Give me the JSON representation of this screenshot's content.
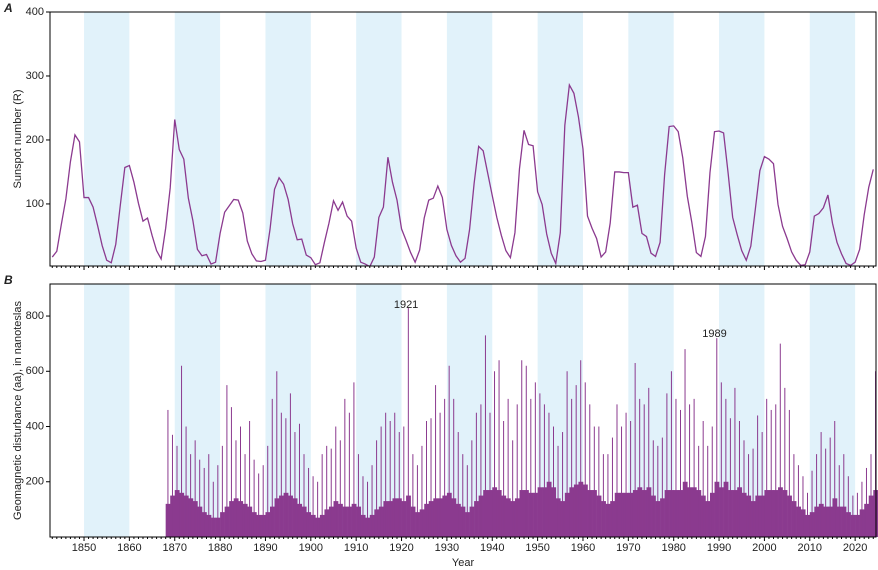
{
  "chart_data": [
    {
      "type": "line",
      "panel_label": "A",
      "y_label": "Sunspot number (R)",
      "color": "#8b3a8f",
      "shade_color": "#e1f2fa",
      "xlim": [
        1842.5,
        2024.6
      ],
      "ylim": [
        3,
        400
      ],
      "xticks": [
        1850,
        1860,
        1870,
        1880,
        1890,
        1900,
        1910,
        1920,
        1930,
        1940,
        1950,
        1960,
        1970,
        1980,
        1990,
        2000,
        2010,
        2020
      ],
      "yticks": [
        100,
        200,
        300,
        400
      ],
      "shaded_spans": [
        [
          1850,
          1860
        ],
        [
          1870,
          1880
        ],
        [
          1890,
          1900
        ],
        [
          1910,
          1920
        ],
        [
          1930,
          1940
        ],
        [
          1950,
          1960
        ],
        [
          1970,
          1980
        ],
        [
          1990,
          2000
        ],
        [
          2010,
          2020
        ]
      ],
      "x": [
        1843,
        1844,
        1845,
        1846,
        1847,
        1848,
        1849,
        1850,
        1851,
        1852,
        1853,
        1854,
        1855,
        1856,
        1857,
        1858,
        1859,
        1860,
        1861,
        1862,
        1863,
        1864,
        1865,
        1866,
        1867,
        1868,
        1869,
        1870,
        1871,
        1872,
        1873,
        1874,
        1875,
        1876,
        1877,
        1878,
        1879,
        1880,
        1881,
        1882,
        1883,
        1884,
        1885,
        1886,
        1887,
        1888,
        1889,
        1890,
        1891,
        1892,
        1893,
        1894,
        1895,
        1896,
        1897,
        1898,
        1899,
        1900,
        1901,
        1902,
        1903,
        1904,
        1905,
        1906,
        1907,
        1908,
        1909,
        1910,
        1911,
        1912,
        1913,
        1914,
        1915,
        1916,
        1917,
        1918,
        1919,
        1920,
        1921,
        1922,
        1923,
        1924,
        1925,
        1926,
        1927,
        1928,
        1929,
        1930,
        1931,
        1932,
        1933,
        1934,
        1935,
        1936,
        1937,
        1938,
        1939,
        1940,
        1941,
        1942,
        1943,
        1944,
        1945,
        1946,
        1947,
        1948,
        1949,
        1950,
        1951,
        1952,
        1953,
        1954,
        1955,
        1956,
        1957,
        1958,
        1959,
        1960,
        1961,
        1962,
        1963,
        1964,
        1965,
        1966,
        1967,
        1968,
        1969,
        1970,
        1971,
        1972,
        1973,
        1974,
        1975,
        1976,
        1977,
        1978,
        1979,
        1980,
        1981,
        1982,
        1983,
        1984,
        1985,
        1986,
        1987,
        1988,
        1989,
        1990,
        1991,
        1992,
        1993,
        1994,
        1995,
        1996,
        1997,
        1998,
        1999,
        2000,
        2001,
        2002,
        2003,
        2004,
        2005,
        2006,
        2007,
        2008,
        2009,
        2010,
        2011,
        2012,
        2013,
        2014,
        2015,
        2016,
        2017,
        2018,
        2019,
        2020,
        2021,
        2022,
        2023,
        2024
      ],
      "values": [
        17,
        26,
        68,
        108,
        166,
        208,
        197,
        110,
        110,
        95,
        66,
        35,
        12,
        8,
        37,
        98,
        157,
        160,
        134,
        101,
        73,
        78,
        51,
        27,
        14,
        62,
        125,
        232,
        185,
        170,
        109,
        74,
        29,
        19,
        21,
        6,
        9,
        54,
        87,
        97,
        107,
        106,
        86,
        42,
        22,
        11,
        10,
        12,
        60,
        123,
        141,
        131,
        107,
        69,
        44,
        45,
        20,
        16,
        5,
        8,
        40,
        70,
        105,
        90,
        103,
        81,
        73,
        31,
        9,
        6,
        2,
        17,
        79,
        95,
        173,
        134,
        106,
        61,
        43,
        24,
        9,
        28,
        78,
        106,
        109,
        128,
        110,
        60,
        35,
        19,
        9,
        15,
        60,
        132,
        190,
        183,
        148,
        113,
        79,
        51,
        27,
        16,
        55,
        155,
        215,
        193,
        191,
        119,
        99,
        53,
        23,
        7,
        55,
        223,
        286,
        273,
        236,
        186,
        81,
        62,
        46,
        17,
        25,
        70,
        150,
        150,
        149,
        149,
        95,
        98,
        54,
        49,
        23,
        18,
        40,
        146,
        221,
        222,
        213,
        172,
        112,
        71,
        24,
        18,
        49,
        149,
        213,
        214,
        211,
        148,
        79,
        52,
        27,
        12,
        34,
        92,
        152,
        174,
        170,
        163,
        99,
        65,
        46,
        25,
        12,
        4,
        5,
        25,
        81,
        85,
        94,
        114,
        70,
        40,
        22,
        7,
        4,
        9,
        29,
        83,
        126,
        154
      ]
    },
    {
      "type": "spikes",
      "panel_label": "B",
      "y_label": "Geomagnetic disturbance (aa), in nanoteslas",
      "x_label": "Year",
      "shade_color": "#e1f2fa",
      "xlim": [
        1842.5,
        2024.6
      ],
      "ylim": [
        0,
        916
      ],
      "xticks": [
        1850,
        1860,
        1870,
        1880,
        1890,
        1900,
        1910,
        1920,
        1930,
        1940,
        1950,
        1960,
        1970,
        1980,
        1990,
        2000,
        2010,
        2020
      ],
      "yticks": [
        200,
        400,
        600,
        800
      ],
      "shaded_spans": [
        [
          1850,
          1860
        ],
        [
          1870,
          1880
        ],
        [
          1890,
          1900
        ],
        [
          1910,
          1920
        ],
        [
          1930,
          1940
        ],
        [
          1950,
          1960
        ],
        [
          1970,
          1980
        ],
        [
          1990,
          2000
        ],
        [
          2010,
          2020
        ]
      ],
      "annotations": [
        {
          "text": "1921",
          "x": 1921,
          "y": 840
        },
        {
          "text": "1989",
          "x": 1989,
          "y": 735
        }
      ],
      "x": [
        1868,
        1869,
        1870,
        1871,
        1872,
        1873,
        1874,
        1875,
        1876,
        1877,
        1878,
        1879,
        1880,
        1881,
        1882,
        1883,
        1884,
        1885,
        1886,
        1887,
        1888,
        1889,
        1890,
        1891,
        1892,
        1893,
        1894,
        1895,
        1896,
        1897,
        1898,
        1899,
        1900,
        1901,
        1902,
        1903,
        1904,
        1905,
        1906,
        1907,
        1908,
        1909,
        1910,
        1911,
        1912,
        1913,
        1914,
        1915,
        1916,
        1917,
        1918,
        1919,
        1920,
        1921,
        1922,
        1923,
        1924,
        1925,
        1926,
        1927,
        1928,
        1929,
        1930,
        1931,
        1932,
        1933,
        1934,
        1935,
        1936,
        1937,
        1938,
        1939,
        1940,
        1941,
        1942,
        1943,
        1944,
        1945,
        1946,
        1947,
        1948,
        1949,
        1950,
        1951,
        1952,
        1953,
        1954,
        1955,
        1956,
        1957,
        1958,
        1959,
        1960,
        1961,
        1962,
        1963,
        1964,
        1965,
        1966,
        1967,
        1968,
        1969,
        1970,
        1971,
        1972,
        1973,
        1974,
        1975,
        1976,
        1977,
        1978,
        1979,
        1980,
        1981,
        1982,
        1983,
        1984,
        1985,
        1986,
        1987,
        1988,
        1989,
        1990,
        1991,
        1992,
        1993,
        1994,
        1995,
        1996,
        1997,
        1998,
        1999,
        2000,
        2001,
        2002,
        2003,
        2004,
        2005,
        2006,
        2007,
        2008,
        2009,
        2010,
        2011,
        2012,
        2013,
        2014,
        2015,
        2016,
        2017,
        2018,
        2019,
        2020,
        2021,
        2022,
        2023,
        2024
      ],
      "series": [
        {
          "color": "#8b3a8f",
          "values": [
            120,
            150,
            170,
            160,
            150,
            140,
            130,
            110,
            90,
            80,
            70,
            70,
            90,
            110,
            130,
            140,
            130,
            120,
            110,
            90,
            80,
            80,
            90,
            110,
            140,
            150,
            160,
            150,
            140,
            120,
            110,
            90,
            80,
            70,
            80,
            100,
            110,
            130,
            120,
            110,
            110,
            120,
            110,
            80,
            70,
            80,
            100,
            110,
            130,
            130,
            140,
            140,
            130,
            150,
            110,
            90,
            100,
            120,
            130,
            140,
            140,
            150,
            160,
            140,
            120,
            110,
            90,
            110,
            130,
            150,
            170,
            170,
            180,
            170,
            150,
            140,
            130,
            140,
            170,
            170,
            160,
            160,
            180,
            180,
            200,
            180,
            140,
            130,
            160,
            180,
            190,
            200,
            190,
            170,
            170,
            150,
            130,
            120,
            130,
            160,
            160,
            160,
            160,
            170,
            180,
            170,
            180,
            150,
            130,
            140,
            170,
            170,
            170,
            170,
            200,
            180,
            180,
            170,
            150,
            130,
            160,
            200,
            180,
            200,
            170,
            170,
            180,
            160,
            150,
            130,
            150,
            150,
            170,
            170,
            170,
            180,
            170,
            150,
            130,
            110,
            100,
            80,
            90,
            110,
            120,
            110,
            110,
            140,
            110,
            110,
            90,
            80,
            80,
            100,
            120,
            150,
            170
          ]
        },
        {
          "color": "#8b3a8f",
          "values": [
            460,
            370,
            330,
            620,
            400,
            300,
            350,
            280,
            250,
            300,
            200,
            260,
            330,
            550,
            470,
            350,
            400,
            300,
            420,
            280,
            230,
            260,
            330,
            500,
            600,
            450,
            430,
            520,
            380,
            410,
            300,
            250,
            220,
            200,
            300,
            330,
            320,
            400,
            350,
            500,
            450,
            560,
            300,
            220,
            200,
            260,
            350,
            400,
            450,
            420,
            450,
            380,
            400,
            830,
            300,
            260,
            330,
            420,
            430,
            550,
            450,
            500,
            620,
            500,
            380,
            300,
            260,
            350,
            450,
            480,
            730,
            450,
            600,
            640,
            420,
            500,
            350,
            480,
            640,
            620,
            500,
            560,
            520,
            480,
            450,
            400,
            330,
            380,
            600,
            500,
            550,
            640,
            560,
            480,
            400,
            400,
            300,
            300,
            360,
            480,
            400,
            450,
            420,
            630,
            500,
            480,
            540,
            350,
            330,
            360,
            520,
            600,
            500,
            460,
            680,
            480,
            500,
            330,
            420,
            330,
            400,
            720,
            560,
            500,
            430,
            540,
            420,
            350,
            300,
            320,
            440,
            380,
            500,
            460,
            480,
            700,
            540,
            460,
            300,
            260,
            220,
            160,
            240,
            300,
            380,
            320,
            360,
            420,
            260,
            300,
            220,
            150,
            160,
            200,
            250,
            300,
            600
          ]
        }
      ]
    }
  ]
}
